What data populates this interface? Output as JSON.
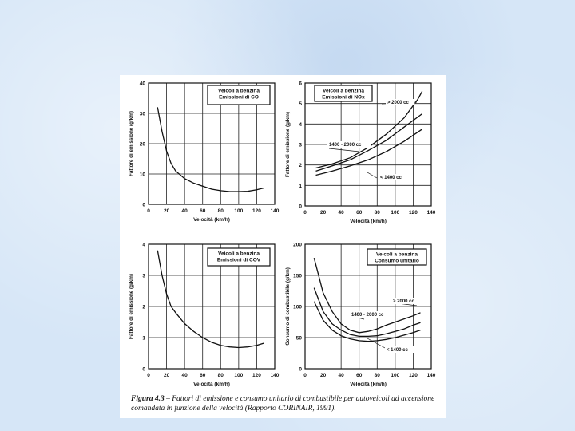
{
  "caption": {
    "label": "Figura 4.3",
    "text": " – Fattori di emissione e consumo unitario di combustibile per autoveicoli ad accensione comandata in funzione della velocità (Rapporto CORINAIR, 1991)."
  },
  "chart_data": [
    {
      "type": "line",
      "title_lines": [
        "Veicoli a benzina",
        "Emissioni di CO"
      ],
      "xlabel": "Velocità (km/h)",
      "ylabel": "Fattore di emissione (g/km)",
      "xlim": [
        0,
        140
      ],
      "ylim": [
        0,
        40
      ],
      "xticks": [
        "0",
        "20",
        "40",
        "60",
        "80",
        "100",
        "120",
        "140"
      ],
      "yticks": [
        "0",
        "10",
        "20",
        "30",
        "40"
      ],
      "series": [
        {
          "name": "",
          "label_y": null,
          "label_x": null,
          "points": [
            [
              10,
              32
            ],
            [
              15,
              24
            ],
            [
              20,
              17.5
            ],
            [
              25,
              13.5
            ],
            [
              30,
              11
            ],
            [
              40,
              8.5
            ],
            [
              50,
              7
            ],
            [
              60,
              6
            ],
            [
              70,
              5
            ],
            [
              80,
              4.5
            ],
            [
              90,
              4.2
            ],
            [
              100,
              4.2
            ],
            [
              110,
              4.3
            ],
            [
              120,
              4.8
            ],
            [
              128,
              5.4
            ]
          ]
        }
      ]
    },
    {
      "type": "line",
      "title_lines": [
        "Veicoli a benzina",
        "Emissioni di NOx"
      ],
      "xlabel": "Velocità (km/h)",
      "ylabel": "Fattore di emissione (g/km)",
      "xlim": [
        0,
        140
      ],
      "ylim": [
        0,
        6
      ],
      "xticks": [
        "0",
        "20",
        "40",
        "60",
        "80",
        "100",
        "120",
        "140"
      ],
      "yticks": [
        "0",
        "1",
        "2",
        "3",
        "4",
        "5",
        "6"
      ],
      "series": [
        {
          "name": "> 2000 cc",
          "points": [
            [
              12,
              1.85
            ],
            [
              30,
              2.05
            ],
            [
              50,
              2.35
            ],
            [
              70,
              2.85
            ],
            [
              90,
              3.5
            ],
            [
              110,
              4.3
            ],
            [
              125,
              5.2
            ],
            [
              130,
              5.6
            ]
          ]
        },
        {
          "name": "1400 - 2000 cc",
          "points": [
            [
              12,
              1.7
            ],
            [
              30,
              1.95
            ],
            [
              50,
              2.25
            ],
            [
              70,
              2.7
            ],
            [
              90,
              3.2
            ],
            [
              110,
              3.85
            ],
            [
              130,
              4.5
            ]
          ]
        },
        {
          "name": "< 1400 cc",
          "points": [
            [
              12,
              1.5
            ],
            [
              30,
              1.7
            ],
            [
              50,
              1.95
            ],
            [
              70,
              2.25
            ],
            [
              90,
              2.65
            ],
            [
              110,
              3.15
            ],
            [
              130,
              3.75
            ]
          ]
        }
      ]
    },
    {
      "type": "line",
      "title_lines": [
        "Veicoli a benzina",
        "Emissioni di COV"
      ],
      "xlabel": "Velocità (km/h)",
      "ylabel": "Fattore di emissione (g/km)",
      "xlim": [
        0,
        140
      ],
      "ylim": [
        0,
        4
      ],
      "xticks": [
        "0",
        "20",
        "40",
        "60",
        "80",
        "100",
        "120",
        "140"
      ],
      "yticks": [
        "0",
        "1",
        "2",
        "3",
        "4"
      ],
      "series": [
        {
          "name": "",
          "points": [
            [
              10,
              3.8
            ],
            [
              15,
              3.0
            ],
            [
              20,
              2.4
            ],
            [
              25,
              2.0
            ],
            [
              30,
              1.8
            ],
            [
              40,
              1.45
            ],
            [
              50,
              1.2
            ],
            [
              60,
              1.0
            ],
            [
              70,
              0.85
            ],
            [
              80,
              0.75
            ],
            [
              90,
              0.7
            ],
            [
              100,
              0.68
            ],
            [
              110,
              0.7
            ],
            [
              120,
              0.75
            ],
            [
              128,
              0.82
            ]
          ]
        }
      ]
    },
    {
      "type": "line",
      "title_lines": [
        "Veicoli a benzina",
        "Consumo unitario"
      ],
      "xlabel": "Velocità (km/h)",
      "ylabel": "Consumo di combustibile (g/km)",
      "xlim": [
        0,
        140
      ],
      "ylim": [
        0,
        200
      ],
      "xticks": [
        "0",
        "20",
        "40",
        "60",
        "80",
        "100",
        "120",
        "140"
      ],
      "yticks": [
        "0",
        "50",
        "100",
        "150",
        "200"
      ],
      "series": [
        {
          "name": "> 2000 cc",
          "points": [
            [
              10,
              178
            ],
            [
              20,
              122
            ],
            [
              30,
              92
            ],
            [
              40,
              72
            ],
            [
              50,
              62
            ],
            [
              60,
              58
            ],
            [
              70,
              60
            ],
            [
              80,
              64
            ],
            [
              90,
              70
            ],
            [
              100,
              75
            ],
            [
              110,
              80
            ],
            [
              120,
              85
            ],
            [
              128,
              90
            ]
          ]
        },
        {
          "name": "1400 - 2000 cc",
          "points": [
            [
              10,
              130
            ],
            [
              20,
              92
            ],
            [
              30,
              72
            ],
            [
              40,
              62
            ],
            [
              50,
              55
            ],
            [
              60,
              52
            ],
            [
              70,
              52
            ],
            [
              80,
              53
            ],
            [
              90,
              56
            ],
            [
              100,
              60
            ],
            [
              110,
              64
            ],
            [
              120,
              70
            ],
            [
              128,
              74
            ]
          ]
        },
        {
          "name": "< 1400 cc",
          "points": [
            [
              10,
              108
            ],
            [
              20,
              78
            ],
            [
              30,
              62
            ],
            [
              40,
              53
            ],
            [
              50,
              48
            ],
            [
              60,
              45
            ],
            [
              70,
              44
            ],
            [
              80,
              45
            ],
            [
              90,
              47
            ],
            [
              100,
              50
            ],
            [
              110,
              54
            ],
            [
              120,
              58
            ],
            [
              128,
              62
            ]
          ]
        }
      ]
    }
  ]
}
